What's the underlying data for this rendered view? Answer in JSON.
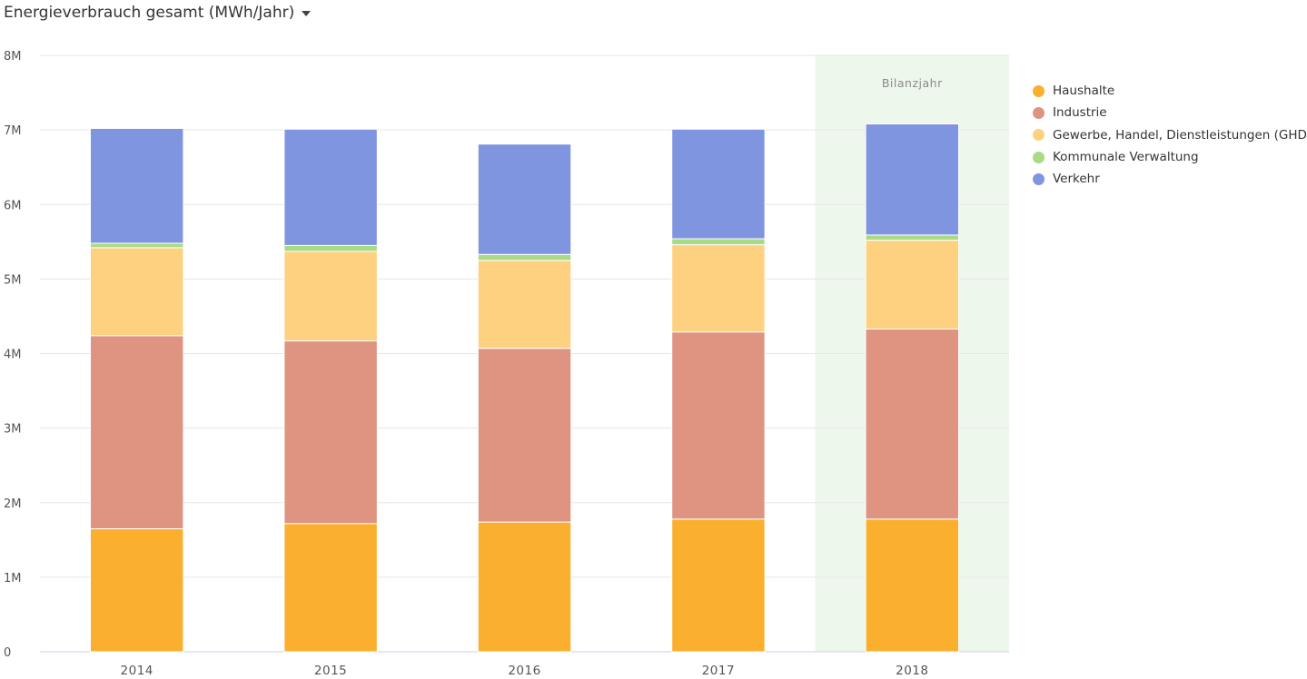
{
  "header": {
    "title": "Energieverbrauch gesamt (MWh/Jahr)"
  },
  "chart_data": {
    "type": "bar",
    "stacked": true,
    "categories": [
      "2014",
      "2015",
      "2016",
      "2017",
      "2018"
    ],
    "series": [
      {
        "name": "Haushalte",
        "color": "#fbaf2e",
        "values": [
          1650000,
          1720000,
          1740000,
          1780000,
          1780000
        ]
      },
      {
        "name": "Industrie",
        "color": "#de9480",
        "values": [
          2590000,
          2450000,
          2330000,
          2510000,
          2550000
        ]
      },
      {
        "name": "Gewerbe, Handel, Dienstleistungen (GHD)",
        "color": "#fdd17f",
        "values": [
          1180000,
          1200000,
          1180000,
          1170000,
          1190000
        ]
      },
      {
        "name": "Kommunale Verwaltung",
        "color": "#a9da85",
        "values": [
          60000,
          80000,
          80000,
          80000,
          70000
        ]
      },
      {
        "name": "Verkehr",
        "color": "#8095e0",
        "values": [
          1540000,
          1560000,
          1480000,
          1470000,
          1490000
        ]
      }
    ],
    "ylim": [
      0,
      8000000
    ],
    "yticks": [
      {
        "value": 0,
        "label": "0"
      },
      {
        "value": 1000000,
        "label": "1M"
      },
      {
        "value": 2000000,
        "label": "2M"
      },
      {
        "value": 3000000,
        "label": "3M"
      },
      {
        "value": 4000000,
        "label": "4M"
      },
      {
        "value": 5000000,
        "label": "5M"
      },
      {
        "value": 6000000,
        "label": "6M"
      },
      {
        "value": 7000000,
        "label": "7M"
      },
      {
        "value": 8000000,
        "label": "8M"
      }
    ],
    "grid": true,
    "legend_position": "right",
    "highlight": {
      "category": "2018",
      "label": "Bilanzjahr",
      "color": "#eef7ec"
    }
  }
}
